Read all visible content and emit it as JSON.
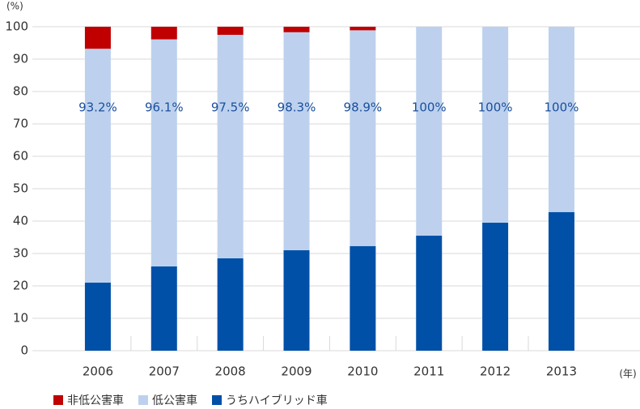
{
  "chart_data": {
    "type": "stacked_bar",
    "y_axis_label": "(%)",
    "x_axis_label": "(年)",
    "categories": [
      "2006",
      "2007",
      "2008",
      "2009",
      "2010",
      "2011",
      "2012",
      "2013"
    ],
    "series": [
      {
        "name": "うちハイブリッド車",
        "color": "#0050a8",
        "values": [
          21,
          26,
          28.5,
          31,
          32.3,
          35.5,
          39.5,
          42.8
        ]
      },
      {
        "name": "低公害車",
        "color": "#bdd1ee",
        "values": [
          72.2,
          70.1,
          69,
          67.3,
          66.6,
          64.5,
          60.5,
          57.2
        ]
      },
      {
        "name": "非低公害車",
        "color": "#c00000",
        "values": [
          6.8,
          3.9,
          2.5,
          1.7,
          1.1,
          0,
          0,
          0
        ]
      }
    ],
    "annotations": [
      "93.2%",
      "96.1%",
      "97.5%",
      "98.3%",
      "98.9%",
      "100%",
      "100%",
      "100%"
    ],
    "legend_order": [
      2,
      1,
      0
    ],
    "ylim": [
      0,
      100
    ],
    "yticks": [
      0,
      10,
      20,
      30,
      40,
      50,
      60,
      70,
      80,
      90,
      100
    ],
    "grid": true
  }
}
